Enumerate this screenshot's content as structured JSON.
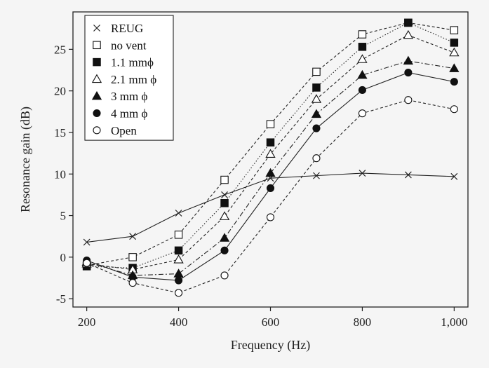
{
  "chart_data": {
    "type": "line",
    "xlabel": "Frequency (Hz)",
    "ylabel": "Resonance gain (dB)",
    "x": [
      200,
      300,
      400,
      500,
      600,
      700,
      800,
      900,
      1000
    ],
    "x_tick_values": [
      200,
      400,
      600,
      800,
      1000
    ],
    "x_tick_labels": [
      "200",
      "400",
      "600",
      "800",
      "1,000"
    ],
    "xlim": [
      170,
      1030
    ],
    "y_tick_values": [
      -5,
      0,
      5,
      10,
      15,
      20,
      25
    ],
    "y_tick_labels": [
      "-5",
      "0",
      "5",
      "10",
      "15",
      "20",
      "25"
    ],
    "ylim": [
      -6,
      29.5
    ],
    "grid": false,
    "legend_position": "top-left",
    "series": [
      {
        "name": "REUG",
        "marker": "x",
        "line": "solid",
        "values": [
          1.8,
          2.5,
          5.3,
          7.5,
          9.5,
          9.8,
          10.1,
          9.9,
          9.7
        ]
      },
      {
        "name": "no vent",
        "marker": "open-square",
        "line": "dashed",
        "values": [
          -1.0,
          0.0,
          2.7,
          9.3,
          16.0,
          22.3,
          26.8,
          28.2,
          27.3
        ]
      },
      {
        "name": "1.1 mmϕ",
        "marker": "filled-square",
        "line": "dotted",
        "values": [
          -1.1,
          -1.3,
          0.8,
          6.5,
          13.8,
          20.4,
          25.3,
          28.2,
          25.8
        ]
      },
      {
        "name": "2.1 mm ϕ",
        "marker": "open-triangle",
        "line": "dashed",
        "values": [
          -0.8,
          -1.5,
          -0.3,
          4.9,
          12.4,
          19.0,
          23.8,
          26.7,
          24.6
        ]
      },
      {
        "name": "3 mm ϕ",
        "marker": "filled-triangle",
        "line": "dashdot",
        "values": [
          -0.6,
          -2.2,
          -2.0,
          2.3,
          10.1,
          17.2,
          21.9,
          23.6,
          22.7
        ]
      },
      {
        "name": "4 mm ϕ",
        "marker": "filled-circle",
        "line": "solid",
        "values": [
          -0.4,
          -2.4,
          -2.8,
          0.8,
          8.3,
          15.5,
          20.1,
          22.2,
          21.1
        ]
      },
      {
        "name": "Open",
        "marker": "open-circle",
        "line": "dashed",
        "values": [
          -0.7,
          -3.1,
          -4.3,
          -2.2,
          4.8,
          11.9,
          17.3,
          18.9,
          17.8
        ]
      }
    ]
  }
}
